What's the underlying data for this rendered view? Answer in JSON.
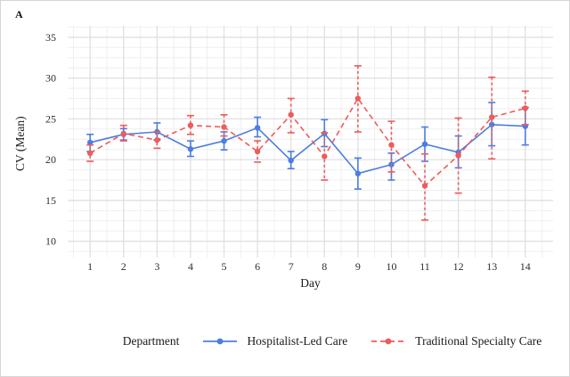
{
  "figure": {
    "panel_label": "A",
    "legend": {
      "title": "Department",
      "items": [
        {
          "label": "Hospitalist-Led Care",
          "color": "#4c7de0",
          "style": "solid"
        },
        {
          "label": "Traditional Specialty Care",
          "color": "#ee5b5b",
          "style": "dashed"
        }
      ]
    }
  },
  "chart_data": {
    "type": "line",
    "title": "",
    "xlabel": "Day",
    "ylabel": "CV (Mean)",
    "x": [
      1,
      2,
      3,
      4,
      5,
      6,
      7,
      8,
      9,
      10,
      11,
      12,
      13,
      14
    ],
    "x_tick_labels": [
      "1",
      "2",
      "3",
      "4",
      "5",
      "6",
      "7",
      "8",
      "9",
      "10",
      "11",
      "12",
      "13",
      "14"
    ],
    "y_ticks": [
      10,
      15,
      20,
      25,
      30,
      35
    ],
    "xlim": [
      0.33,
      14.83
    ],
    "ylim": [
      8,
      36.4
    ],
    "grid": {
      "major": true,
      "minor": true,
      "minor_x_step": 0.5,
      "minor_y_step": 1.25,
      "major_color": "#e0e0e0",
      "minor_color": "#efefef"
    },
    "legend_position": "bottom",
    "error_bars": true,
    "series": [
      {
        "name": "Hospitalist-Led Care",
        "color": "#4c7de0",
        "line_style": "solid",
        "marker": "circle",
        "values": [
          22.1,
          23.1,
          23.4,
          21.3,
          22.3,
          23.9,
          19.9,
          23.2,
          18.3,
          19.4,
          21.9,
          20.9,
          24.3,
          24.1
        ],
        "error_low": [
          21.0,
          22.4,
          22.4,
          20.4,
          21.2,
          22.8,
          18.9,
          21.6,
          16.4,
          17.5,
          19.8,
          19.0,
          21.7,
          21.8
        ],
        "error_high": [
          23.1,
          23.8,
          24.5,
          22.3,
          23.4,
          25.2,
          21.0,
          24.9,
          20.2,
          20.8,
          24.0,
          22.9,
          27.0,
          26.4
        ]
      },
      {
        "name": "Traditional Specialty Care",
        "color": "#ee5b5b",
        "line_style": "dashed",
        "marker": "circle",
        "values": [
          20.8,
          23.2,
          22.4,
          24.2,
          24.0,
          21.0,
          25.5,
          20.4,
          27.5,
          21.8,
          16.8,
          20.5,
          25.2,
          26.3
        ],
        "error_low": [
          19.8,
          22.3,
          21.4,
          23.1,
          22.9,
          19.7,
          23.3,
          17.5,
          23.4,
          18.5,
          12.6,
          15.9,
          20.1,
          24.3
        ],
        "error_high": [
          21.8,
          24.2,
          23.4,
          25.4,
          25.5,
          22.3,
          27.5,
          23.3,
          31.5,
          24.7,
          20.7,
          25.1,
          30.1,
          28.4
        ]
      }
    ]
  }
}
